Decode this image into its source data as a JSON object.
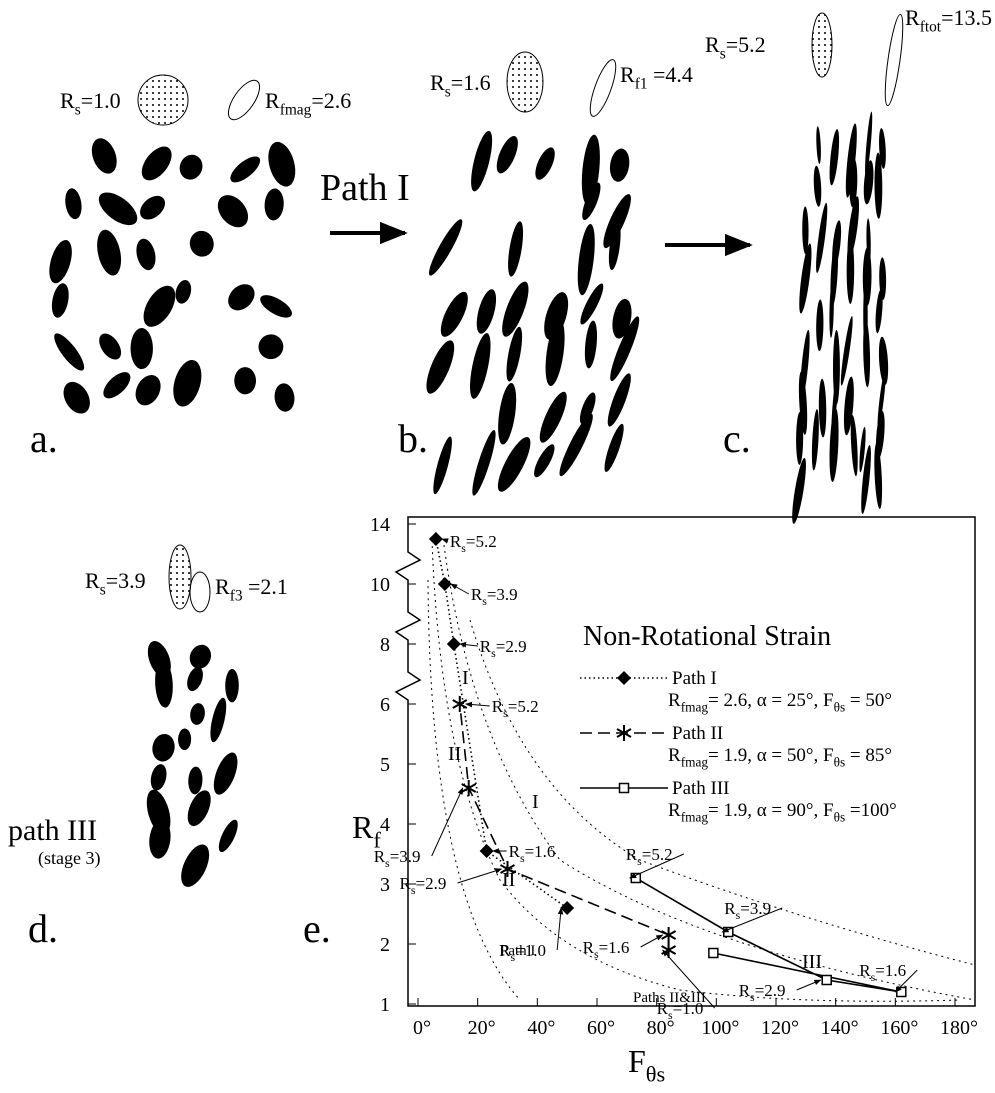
{
  "panels": [
    {
      "letter": "a.",
      "labels": [
        [
          "R",
          "s",
          "=1.0"
        ],
        [
          "R",
          "fmag",
          "=2.6"
        ]
      ]
    },
    {
      "letter": "b.",
      "arrow_label": "Path I",
      "labels": [
        [
          "R",
          "s",
          "=1.6"
        ],
        [
          "R",
          "f1",
          " =4.4"
        ]
      ]
    },
    {
      "letter": "c.",
      "labels": [
        [
          "R",
          "s",
          "=5.2"
        ],
        [
          "R",
          "ftot",
          "=13.5"
        ]
      ]
    },
    {
      "letter": "d.",
      "labels": [
        [
          "R",
          "s",
          "=3.9"
        ],
        [
          "R",
          "f3",
          " =2.1"
        ]
      ],
      "caption": "path III",
      "subcaption": "(stage 3)"
    },
    {
      "letter": "e."
    }
  ],
  "chart_data": {
    "type": "line",
    "title": "Non-Rotational Strain",
    "y_label": [
      "R",
      "f"
    ],
    "x_label": [
      "F",
      "θs"
    ],
    "xlim": [
      0,
      180
    ],
    "xticks": [
      {
        "value": 0,
        "label": "0°"
      },
      {
        "value": 20,
        "label": "20°"
      },
      {
        "value": 40,
        "label": "40°"
      },
      {
        "value": 60,
        "label": "60°"
      },
      {
        "value": 80,
        "label": "80°"
      },
      {
        "value": 100,
        "label": "100°"
      },
      {
        "value": 120,
        "label": "120°"
      },
      {
        "value": 140,
        "label": "140°"
      },
      {
        "value": 160,
        "label": "160°"
      },
      {
        "value": 180,
        "label": "180°"
      }
    ],
    "ylim": [
      1,
      14
    ],
    "yticks": [
      1,
      2,
      3,
      4,
      5,
      6,
      8,
      10,
      14
    ],
    "series": [
      {
        "name": "Path I",
        "params": [
          "R",
          "fmag",
          "= 2.6, α = 25°, F",
          "θs",
          " = 50°"
        ],
        "color": "#000000",
        "line_style": "dotted",
        "marker": "diamond",
        "x": [
          50,
          23,
          12,
          9,
          6
        ],
        "values": [
          2.6,
          3.55,
          8,
          10,
          13
        ],
        "point_labels": [
          [
            "R",
            "s",
            "=1.0"
          ],
          [
            "R",
            "s",
            "=1.6"
          ],
          [
            "R",
            "s",
            "=2.9"
          ],
          [
            "R",
            "s",
            "=3.9"
          ],
          [
            "R",
            "s",
            "=5.2"
          ]
        ]
      },
      {
        "name": "Path II",
        "params": [
          "R",
          "fmag",
          "= 1.9, α = 50°, F",
          "θs",
          " = 85°"
        ],
        "color": "#000000",
        "line_style": "dashed",
        "marker": "asterisk",
        "x": [
          84,
          84,
          30,
          17,
          14
        ],
        "values": [
          1.9,
          2.15,
          3.25,
          4.6,
          6
        ],
        "point_labels": [
          [
            "R",
            "s",
            "=1.0"
          ],
          [
            "R",
            "s",
            "=1.6"
          ],
          [
            "R",
            "s",
            "=2.9"
          ],
          [
            "R",
            "s",
            "=3.9"
          ],
          [
            "R",
            "s",
            "=5.2"
          ]
        ]
      },
      {
        "name": "Path III",
        "params": [
          "R",
          "fmag",
          "= 1.9, α = 90°, F",
          "θs",
          " =100°"
        ],
        "color": "#000000",
        "line_style": "solid",
        "marker": "square",
        "x": [
          99,
          162,
          137,
          104,
          73
        ],
        "values": [
          1.85,
          1.2,
          1.4,
          2.2,
          3.1
        ],
        "point_labels": [
          null,
          [
            "R",
            "s",
            "=1.6"
          ],
          [
            "R",
            "s",
            "=2.9"
          ],
          [
            "R",
            "s",
            "=3.9"
          ],
          [
            "R",
            "s",
            "=5.2"
          ]
        ]
      }
    ],
    "annotations": [
      "I",
      "I",
      "II",
      "II",
      "III",
      "Path I",
      "Paths II&III"
    ]
  }
}
